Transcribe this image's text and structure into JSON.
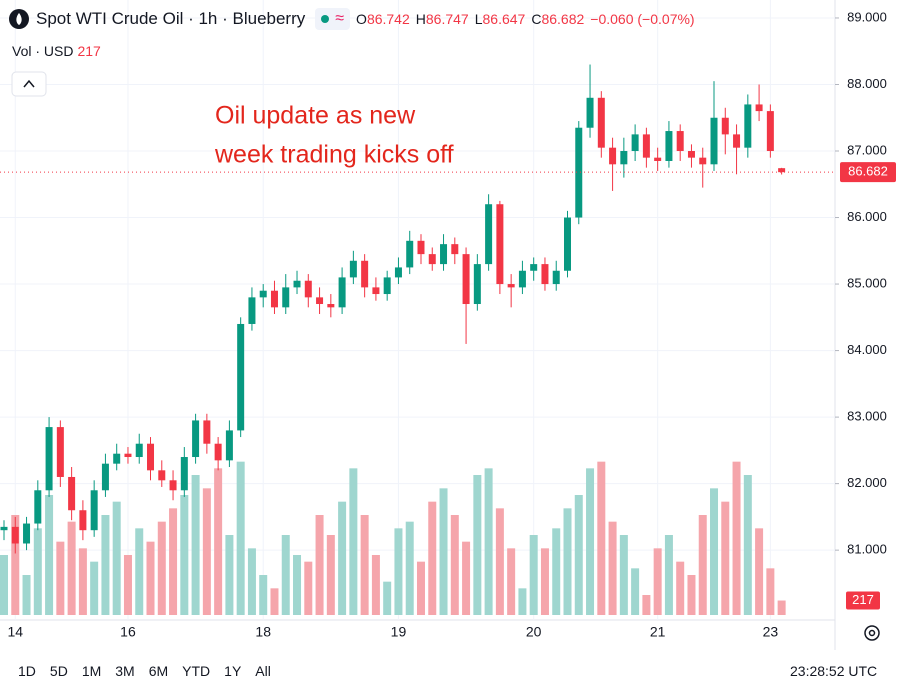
{
  "chart_data": {
    "type": "candlestick",
    "title": "Spot WTI Crude Oil · 1h · Blueberry",
    "change": "−0.060 (−0.07%)",
    "volume_label": "Vol · USD",
    "ohlc_letters": [
      "O",
      "H",
      "L",
      "C"
    ],
    "annotation": [
      "Oil update as new",
      "week trading kicks off"
    ],
    "range_buttons": [
      "1D",
      "5D",
      "1M",
      "3M",
      "6M",
      "YTD",
      "1Y",
      "All"
    ],
    "clock": "23:28:52 UTC",
    "categories": [
      null,
      "14",
      null,
      null,
      null,
      null,
      null,
      null,
      null,
      null,
      null,
      "16",
      null,
      null,
      null,
      null,
      null,
      null,
      null,
      null,
      null,
      null,
      null,
      "18",
      null,
      null,
      null,
      null,
      null,
      null,
      null,
      null,
      null,
      null,
      null,
      "19",
      null,
      null,
      null,
      null,
      null,
      null,
      null,
      null,
      null,
      null,
      null,
      "20",
      null,
      null,
      null,
      null,
      null,
      null,
      null,
      null,
      null,
      null,
      "21",
      null,
      null,
      null,
      null,
      null,
      null,
      null,
      null,
      null,
      "23",
      null
    ],
    "open": [
      81.3,
      81.35,
      81.1,
      81.4,
      81.9,
      82.85,
      82.1,
      81.6,
      81.3,
      81.9,
      82.3,
      82.45,
      82.4,
      82.6,
      82.2,
      82.05,
      81.9,
      82.4,
      82.95,
      82.6,
      82.35,
      82.8,
      84.4,
      84.8,
      84.9,
      84.65,
      84.95,
      85.05,
      84.8,
      84.7,
      84.65,
      85.1,
      85.35,
      84.95,
      84.85,
      85.1,
      85.25,
      85.65,
      85.45,
      85.3,
      85.6,
      85.45,
      84.7,
      85.3,
      86.2,
      85.0,
      84.95,
      85.2,
      85.3,
      85.0,
      85.2,
      86.0,
      87.35,
      87.8,
      87.05,
      86.8,
      87.0,
      87.25,
      86.9,
      86.85,
      87.3,
      87.0,
      86.9,
      86.8,
      87.5,
      87.25,
      87.05,
      87.7,
      87.6,
      86.742
    ],
    "high": [
      81.45,
      81.5,
      81.5,
      82.05,
      83.0,
      82.95,
      82.25,
      81.75,
      82.05,
      82.45,
      82.6,
      82.55,
      82.75,
      82.7,
      82.35,
      82.2,
      82.55,
      83.05,
      83.05,
      82.7,
      82.95,
      84.5,
      84.95,
      85.0,
      85.05,
      85.15,
      85.2,
      85.15,
      84.95,
      84.85,
      85.25,
      85.5,
      85.45,
      85.1,
      85.2,
      85.4,
      85.8,
      85.75,
      85.55,
      85.75,
      85.7,
      85.55,
      85.45,
      86.35,
      86.25,
      85.15,
      85.35,
      85.4,
      85.4,
      85.35,
      86.1,
      87.45,
      88.3,
      87.9,
      87.2,
      87.2,
      87.4,
      87.35,
      87.05,
      87.45,
      87.4,
      87.1,
      87.05,
      88.05,
      87.65,
      87.4,
      87.85,
      88.0,
      87.7,
      86.747
    ],
    "low": [
      81.15,
      80.95,
      81.0,
      81.3,
      81.8,
      81.95,
      81.45,
      81.15,
      81.2,
      81.8,
      82.2,
      82.3,
      82.3,
      82.05,
      81.95,
      81.75,
      81.8,
      82.3,
      82.45,
      82.2,
      82.25,
      82.7,
      84.3,
      84.65,
      84.55,
      84.55,
      84.85,
      84.65,
      84.55,
      84.5,
      84.55,
      85.0,
      84.8,
      84.75,
      84.75,
      85.0,
      85.15,
      85.3,
      85.2,
      85.2,
      85.3,
      84.1,
      84.6,
      85.2,
      84.85,
      84.65,
      84.85,
      85.05,
      84.9,
      84.9,
      85.1,
      85.9,
      87.2,
      86.9,
      86.4,
      86.6,
      86.85,
      86.75,
      86.7,
      86.75,
      86.85,
      86.75,
      86.45,
      86.7,
      86.95,
      86.65,
      86.9,
      87.45,
      86.9,
      86.647
    ],
    "close": [
      81.35,
      81.1,
      81.4,
      81.9,
      82.85,
      82.1,
      81.6,
      81.3,
      81.9,
      82.3,
      82.45,
      82.4,
      82.6,
      82.2,
      82.05,
      81.9,
      82.4,
      82.95,
      82.6,
      82.35,
      82.8,
      84.4,
      84.8,
      84.9,
      84.65,
      84.95,
      85.05,
      84.8,
      84.7,
      84.65,
      85.1,
      85.35,
      84.95,
      84.85,
      85.1,
      85.25,
      85.65,
      85.45,
      85.3,
      85.6,
      85.45,
      84.7,
      85.3,
      86.2,
      85.0,
      84.95,
      85.2,
      85.3,
      85.0,
      85.2,
      86.0,
      87.35,
      87.8,
      87.05,
      86.8,
      87.0,
      87.25,
      86.9,
      86.85,
      87.3,
      87.0,
      86.9,
      86.8,
      87.5,
      87.25,
      87.05,
      87.7,
      87.6,
      87.0,
      86.682
    ],
    "volume": [
      900,
      1500,
      600,
      1300,
      1800,
      1100,
      1400,
      1000,
      800,
      1500,
      1700,
      900,
      1300,
      1100,
      1400,
      1600,
      1800,
      2100,
      1900,
      2200,
      1200,
      2300,
      1000,
      600,
      400,
      1200,
      900,
      800,
      1500,
      1200,
      1700,
      2200,
      1500,
      900,
      500,
      1300,
      1400,
      800,
      1700,
      1900,
      1500,
      1100,
      2100,
      2200,
      1600,
      1000,
      400,
      1200,
      1000,
      1300,
      1600,
      1800,
      2200,
      2300,
      1400,
      1200,
      700,
      300,
      1000,
      1200,
      800,
      600,
      1500,
      1900,
      1700,
      2300,
      2100,
      1300,
      700,
      217
    ],
    "volume_lim": [
      0,
      6000
    ],
    "ylim": [
      79.95,
      89.27
    ],
    "yticks": [
      {
        "value": 81,
        "label": "81.000"
      },
      {
        "value": 82,
        "label": "82.000"
      },
      {
        "value": 83,
        "label": "83.000"
      },
      {
        "value": 84,
        "label": "84.000"
      },
      {
        "value": 85,
        "label": "85.000"
      },
      {
        "value": 86,
        "label": "86.000"
      },
      {
        "value": 87,
        "label": "87.000"
      },
      {
        "value": 88,
        "label": "88.000"
      },
      {
        "value": 89,
        "label": "89.000"
      }
    ],
    "grid": true,
    "up_color": "#089981",
    "down_color": "#f23645",
    "volume_up_color": "#9fd6cf",
    "volume_down_color": "#f5a5ab",
    "annotation_color": "#e3261c"
  }
}
